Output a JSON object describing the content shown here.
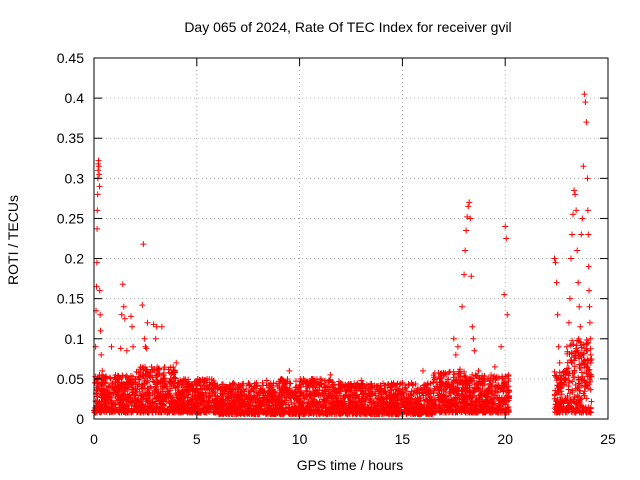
{
  "chart_data": {
    "type": "scatter",
    "title": "Day 065 of 2024, Rate Of TEC Index for receiver gvil",
    "xlabel": "GPS time / hours",
    "ylabel": "ROTI / TECUs",
    "xlim": [
      0,
      25
    ],
    "ylim": [
      0,
      0.45
    ],
    "xticks": [
      "0",
      "5",
      "10",
      "15",
      "20",
      "25"
    ],
    "yticks": [
      "0",
      "0.05",
      "0.1",
      "0.15",
      "0.2",
      "0.25",
      "0.3",
      "0.35",
      "0.4",
      "0.45"
    ],
    "grid": true,
    "marker": "plus",
    "color": "#ff0000",
    "series": [
      {
        "points": [
          [
            0.05,
            0.045
          ],
          [
            0.08,
            0.09
          ],
          [
            0.1,
            0.135
          ],
          [
            0.12,
            0.165
          ],
          [
            0.14,
            0.195
          ],
          [
            0.15,
            0.237
          ],
          [
            0.16,
            0.26
          ],
          [
            0.18,
            0.28
          ],
          [
            0.19,
            0.3
          ],
          [
            0.2,
            0.31
          ],
          [
            0.21,
            0.318
          ],
          [
            0.22,
            0.322
          ],
          [
            0.24,
            0.315
          ],
          [
            0.25,
            0.305
          ],
          [
            0.27,
            0.29
          ],
          [
            0.28,
            0.16
          ],
          [
            0.3,
            0.13
          ],
          [
            0.32,
            0.11
          ],
          [
            0.35,
            0.08
          ],
          [
            0.4,
            0.06
          ],
          [
            0.85,
            0.09
          ],
          [
            1.3,
            0.088
          ],
          [
            1.35,
            0.13
          ],
          [
            1.4,
            0.168
          ],
          [
            1.45,
            0.14
          ],
          [
            1.5,
            0.125
          ],
          [
            1.6,
            0.085
          ],
          [
            1.8,
            0.128
          ],
          [
            1.85,
            0.115
          ],
          [
            1.9,
            0.09
          ],
          [
            2.35,
            0.142
          ],
          [
            2.4,
            0.218
          ],
          [
            2.45,
            0.1
          ],
          [
            2.5,
            0.09
          ],
          [
            2.55,
            0.088
          ],
          [
            2.6,
            0.12
          ],
          [
            2.8,
            0.065
          ],
          [
            2.9,
            0.118
          ],
          [
            3.0,
            0.1
          ],
          [
            3.05,
            0.115
          ],
          [
            3.1,
            0.06
          ],
          [
            3.3,
            0.115
          ],
          [
            3.4,
            0.05
          ],
          [
            3.9,
            0.05
          ],
          [
            4.0,
            0.07
          ],
          [
            5.0,
            0.045
          ],
          [
            5.5,
            0.05
          ],
          [
            6.0,
            0.042
          ],
          [
            7.0,
            0.04
          ],
          [
            7.9,
            0.045
          ],
          [
            8.4,
            0.048
          ],
          [
            9.0,
            0.044
          ],
          [
            9.5,
            0.06
          ],
          [
            10.0,
            0.042
          ],
          [
            10.5,
            0.04
          ],
          [
            11.0,
            0.05
          ],
          [
            11.5,
            0.055
          ],
          [
            12.0,
            0.045
          ],
          [
            12.5,
            0.042
          ],
          [
            13.0,
            0.048
          ],
          [
            13.5,
            0.044
          ],
          [
            14.0,
            0.038
          ],
          [
            14.5,
            0.04
          ],
          [
            15.0,
            0.045
          ],
          [
            15.5,
            0.042
          ],
          [
            16.0,
            0.06
          ],
          [
            16.5,
            0.045
          ],
          [
            17.0,
            0.055
          ],
          [
            17.5,
            0.1
          ],
          [
            17.6,
            0.08
          ],
          [
            17.7,
            0.09
          ],
          [
            17.8,
            0.062
          ],
          [
            17.9,
            0.14
          ],
          [
            18.0,
            0.18
          ],
          [
            18.05,
            0.21
          ],
          [
            18.1,
            0.235
          ],
          [
            18.15,
            0.252
          ],
          [
            18.2,
            0.265
          ],
          [
            18.25,
            0.27
          ],
          [
            18.3,
            0.25
          ],
          [
            18.35,
            0.178
          ],
          [
            18.4,
            0.115
          ],
          [
            18.45,
            0.1
          ],
          [
            18.5,
            0.085
          ],
          [
            18.7,
            0.06
          ],
          [
            19.0,
            0.05
          ],
          [
            19.5,
            0.065
          ],
          [
            19.8,
            0.09
          ],
          [
            19.95,
            0.155
          ],
          [
            20.0,
            0.24
          ],
          [
            20.05,
            0.225
          ],
          [
            20.1,
            0.13
          ],
          [
            20.15,
            0.05
          ],
          [
            22.4,
            0.2
          ],
          [
            22.45,
            0.195
          ],
          [
            22.5,
            0.17
          ],
          [
            22.55,
            0.13
          ],
          [
            22.6,
            0.09
          ],
          [
            22.65,
            0.07
          ],
          [
            22.7,
            0.05
          ],
          [
            22.9,
            0.06
          ],
          [
            23.0,
            0.09
          ],
          [
            23.1,
            0.12
          ],
          [
            23.15,
            0.15
          ],
          [
            23.2,
            0.2
          ],
          [
            23.25,
            0.23
          ],
          [
            23.3,
            0.255
          ],
          [
            23.35,
            0.285
          ],
          [
            23.4,
            0.28
          ],
          [
            23.45,
            0.26
          ],
          [
            23.5,
            0.21
          ],
          [
            23.55,
            0.17
          ],
          [
            23.6,
            0.14
          ],
          [
            23.65,
            0.115
          ],
          [
            23.7,
            0.23
          ],
          [
            23.75,
            0.25
          ],
          [
            23.8,
            0.315
          ],
          [
            23.85,
            0.405
          ],
          [
            23.9,
            0.395
          ],
          [
            23.95,
            0.37
          ],
          [
            24.0,
            0.3
          ],
          [
            24.02,
            0.26
          ],
          [
            24.04,
            0.23
          ],
          [
            24.06,
            0.19
          ],
          [
            24.08,
            0.16
          ],
          [
            24.1,
            0.14
          ],
          [
            24.12,
            0.12
          ],
          [
            24.14,
            0.1
          ],
          [
            24.16,
            0.08
          ]
        ],
        "bands": [
          {
            "x": [
              0.0,
              2.0
            ],
            "y": [
              0.008,
              0.055
            ]
          },
          {
            "x": [
              2.0,
              4.0
            ],
            "y": [
              0.008,
              0.065
            ]
          },
          {
            "x": [
              4.0,
              6.0
            ],
            "y": [
              0.008,
              0.05
            ]
          },
          {
            "x": [
              6.0,
              9.0
            ],
            "y": [
              0.006,
              0.045
            ]
          },
          {
            "x": [
              9.0,
              12.0
            ],
            "y": [
              0.006,
              0.05
            ]
          },
          {
            "x": [
              12.0,
              15.0
            ],
            "y": [
              0.006,
              0.045
            ]
          },
          {
            "x": [
              15.0,
              16.5
            ],
            "y": [
              0.006,
              0.045
            ]
          },
          {
            "x": [
              16.5,
              18.0
            ],
            "y": [
              0.008,
              0.06
            ]
          },
          {
            "x": [
              18.0,
              20.2
            ],
            "y": [
              0.008,
              0.055
            ]
          },
          {
            "x": [
              22.4,
              23.0
            ],
            "y": [
              0.008,
              0.06
            ]
          },
          {
            "x": [
              23.0,
              24.2
            ],
            "y": [
              0.008,
              0.1
            ]
          }
        ]
      }
    ]
  }
}
